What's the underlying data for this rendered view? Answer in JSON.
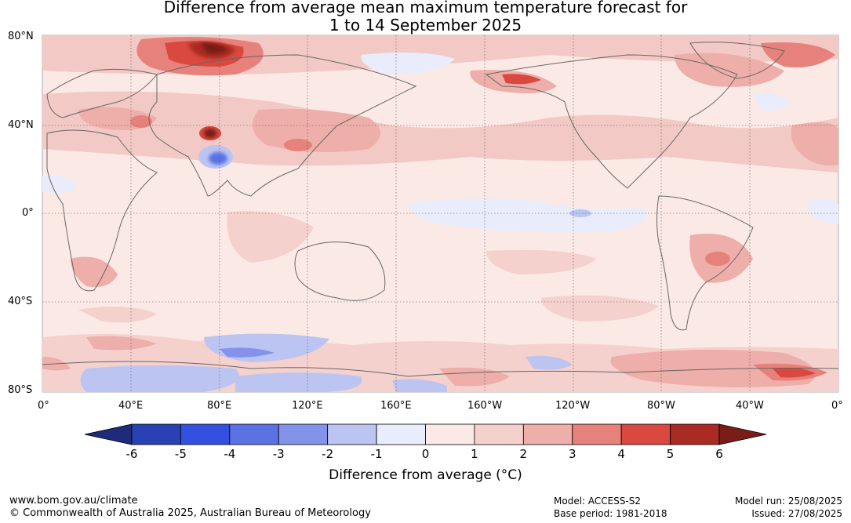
{
  "title": {
    "line1": "Difference from average mean maximum temperature forecast for",
    "line2": "1 to 14 September 2025"
  },
  "map": {
    "lat_labels": [
      "80°N",
      "40°N",
      "0°",
      "40°S",
      "80°S"
    ],
    "lon_labels": [
      "0°",
      "40°E",
      "80°E",
      "120°E",
      "160°E",
      "160°W",
      "120°W",
      "80°W",
      "40°W",
      "0°"
    ],
    "background_color": "#fbe9e6"
  },
  "legend": {
    "title": "Difference from average (°C)",
    "ticks": [
      "-6",
      "-5",
      "-4",
      "-3",
      "-2",
      "-1",
      "0",
      "1",
      "2",
      "3",
      "4",
      "5",
      "6"
    ],
    "colors": [
      "#1f2a7a",
      "#2841b5",
      "#3350e0",
      "#5a73e4",
      "#8493ea",
      "#bcc4f2",
      "#e9ecfb",
      "#fbe9e6",
      "#f5d1cd",
      "#eeaea9",
      "#e7817b",
      "#d9493f",
      "#aa2a24",
      "#7a1c18"
    ]
  },
  "footer": {
    "website": "www.bom.gov.au/climate",
    "copyright": "© Commonwealth of Australia 2025, Australian Bureau of Meteorology",
    "model": "Model: ACCESS-S2",
    "base_period": "Base period: 1981-2018",
    "model_run": "Model run: 25/08/2025",
    "issued": "Issued: 27/08/2025"
  }
}
